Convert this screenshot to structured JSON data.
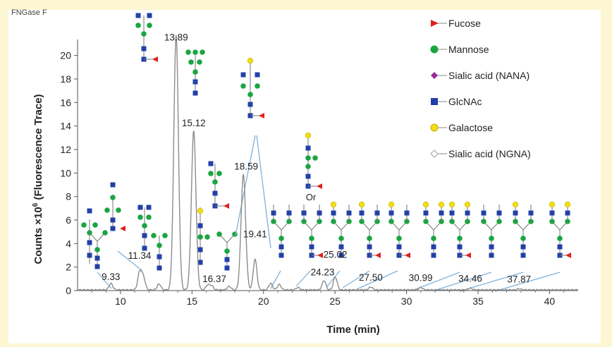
{
  "header": "FNGase F",
  "chart_data": {
    "type": "line",
    "xlabel": "Time (min)",
    "ylabel_prefix": "Counts ×10",
    "ylabel_exp": "6",
    "ylabel_suffix": " (Fluorescence Trace)",
    "xlim": [
      7,
      42
    ],
    "ylim": [
      0,
      21
    ],
    "x_ticks": [
      "10",
      "15",
      "20",
      "25",
      "30",
      "35",
      "40"
    ],
    "y_ticks": [
      "0",
      "2",
      "4",
      "6",
      "8",
      "10",
      "12",
      "14",
      "16",
      "18",
      "20"
    ],
    "grid": false,
    "line_color": "#8c8c8c",
    "peaks": [
      {
        "x": 9.33,
        "label": "9.33",
        "height": 0.55
      },
      {
        "x": 11.34,
        "label": "11.34",
        "height": 1.5
      },
      {
        "x": 13.89,
        "label": "13.89",
        "height": 21.7
      },
      {
        "x": 15.12,
        "label": "15.12",
        "height": 13.5
      },
      {
        "x": 16.37,
        "label": "16.37",
        "height": 0.35
      },
      {
        "x": 18.59,
        "label": "18.59",
        "height": 9.8
      },
      {
        "x": 19.41,
        "label": "19.41",
        "height": 2.6
      },
      {
        "x": 24.23,
        "label": "24.23",
        "height": 0.8
      },
      {
        "x": 25.02,
        "label": "25.02",
        "height": 1.1
      },
      {
        "x": 27.5,
        "label": "27.50",
        "height": 0.25
      },
      {
        "x": 30.99,
        "label": "30.99",
        "height": 0.2
      },
      {
        "x": 34.46,
        "label": "34.46",
        "height": 0.15
      },
      {
        "x": 37.87,
        "label": "37.87",
        "height": 0.1
      }
    ],
    "minor_peaks": [
      {
        "x": 11.6,
        "height": 1.1
      },
      {
        "x": 12.7,
        "height": 0.5
      },
      {
        "x": 16.1,
        "height": 0.4
      },
      {
        "x": 17.6,
        "height": 0.3
      },
      {
        "x": 20.5,
        "height": 0.55
      },
      {
        "x": 21.1,
        "height": 0.45
      },
      {
        "x": 22.4,
        "height": 0.2
      }
    ],
    "annotation_or": "Or",
    "legend": {
      "placement": "top-right",
      "entries": [
        {
          "label": "Fucose",
          "shape": "triangle",
          "color": "#e02020"
        },
        {
          "label": "Mannose",
          "shape": "circle",
          "color": "#1aa541"
        },
        {
          "label": "Sialic acid (NANA)",
          "shape": "diamond",
          "color": "#9a2a9a"
        },
        {
          "label": "GlcNAc",
          "shape": "square",
          "color": "#2340a8"
        },
        {
          "label": "Galactose",
          "shape": "circle",
          "color": "#f2de15"
        },
        {
          "label": "Sialic acid (NGNA)",
          "shape": "diamond-open",
          "color": "#aaaaaa"
        }
      ]
    }
  }
}
